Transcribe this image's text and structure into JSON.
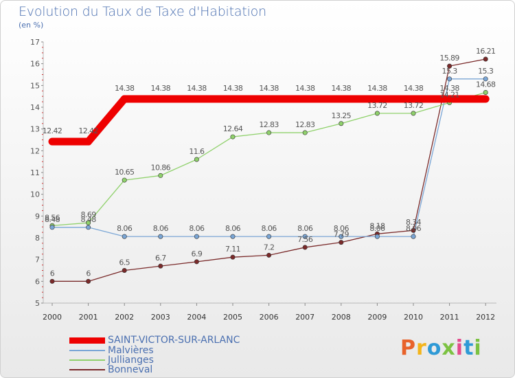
{
  "title": "Evolution du Taux de Taxe d'Habitation",
  "unit_label": "(en %)",
  "brand": "Proxiti",
  "brand_colors": [
    "#e8622a",
    "#f3b41b",
    "#2f9ad6",
    "#7cc242",
    "#e34b8b",
    "#2f9ad6",
    "#7cc242"
  ],
  "chart_data": {
    "type": "line",
    "x": [
      "2000",
      "2001",
      "2002",
      "2003",
      "2004",
      "2005",
      "2006",
      "2007",
      "2008",
      "2009",
      "2010",
      "2011",
      "2012"
    ],
    "ylim": [
      5,
      17
    ],
    "yticks": [
      5,
      6,
      7,
      8,
      9,
      10,
      11,
      12,
      13,
      14,
      15,
      16,
      17
    ],
    "grid": false,
    "legend_placement": "bottom-left",
    "series": [
      {
        "name": "SAINT-VICTOR-SUR-ARLANC",
        "color": "#ee0000",
        "values": [
          12.42,
          12.42,
          14.38,
          14.38,
          14.38,
          14.38,
          14.38,
          14.38,
          14.38,
          14.38,
          14.38,
          14.38,
          14.38
        ],
        "labels": [
          "12.42",
          "12.42",
          "14.38",
          "14.38",
          "14.38",
          "14.38",
          "14.38",
          "14.38",
          "14.38",
          "14.38",
          "14.38",
          "14.38",
          ""
        ]
      },
      {
        "name": "Malvières",
        "color": "#7aa6d6",
        "values": [
          8.48,
          8.48,
          8.06,
          8.06,
          8.06,
          8.06,
          8.06,
          8.06,
          8.06,
          8.06,
          8.06,
          15.3,
          15.3
        ],
        "labels": [
          "8.48",
          "8.48",
          "8.06",
          "8.06",
          "8.06",
          "8.06",
          "8.06",
          "8.06",
          "8.06",
          "8.06",
          "8.06",
          "15.3",
          "15.3"
        ]
      },
      {
        "name": "Jullianges",
        "color": "#8fd16b",
        "values": [
          8.56,
          8.69,
          10.65,
          10.86,
          11.6,
          12.64,
          12.83,
          12.83,
          13.25,
          13.72,
          13.72,
          14.21,
          14.68
        ],
        "labels": [
          "8.56",
          "8.69",
          "10.65",
          "10.86",
          "11.6",
          "12.64",
          "12.83",
          "12.83",
          "13.25",
          "13.72",
          "13.72",
          "14.21",
          "14.68"
        ]
      },
      {
        "name": "Bonneval",
        "color": "#7a2a2a",
        "values": [
          6,
          6,
          6.5,
          6.7,
          6.9,
          7.11,
          7.2,
          7.56,
          7.79,
          8.18,
          8.34,
          15.89,
          16.21
        ],
        "labels": [
          "6",
          "6",
          "6.5",
          "6.7",
          "6.9",
          "7.11",
          "7.2",
          "7.56",
          "7.79",
          "8.18",
          "8.34",
          "15.89",
          "16.21"
        ]
      }
    ]
  }
}
